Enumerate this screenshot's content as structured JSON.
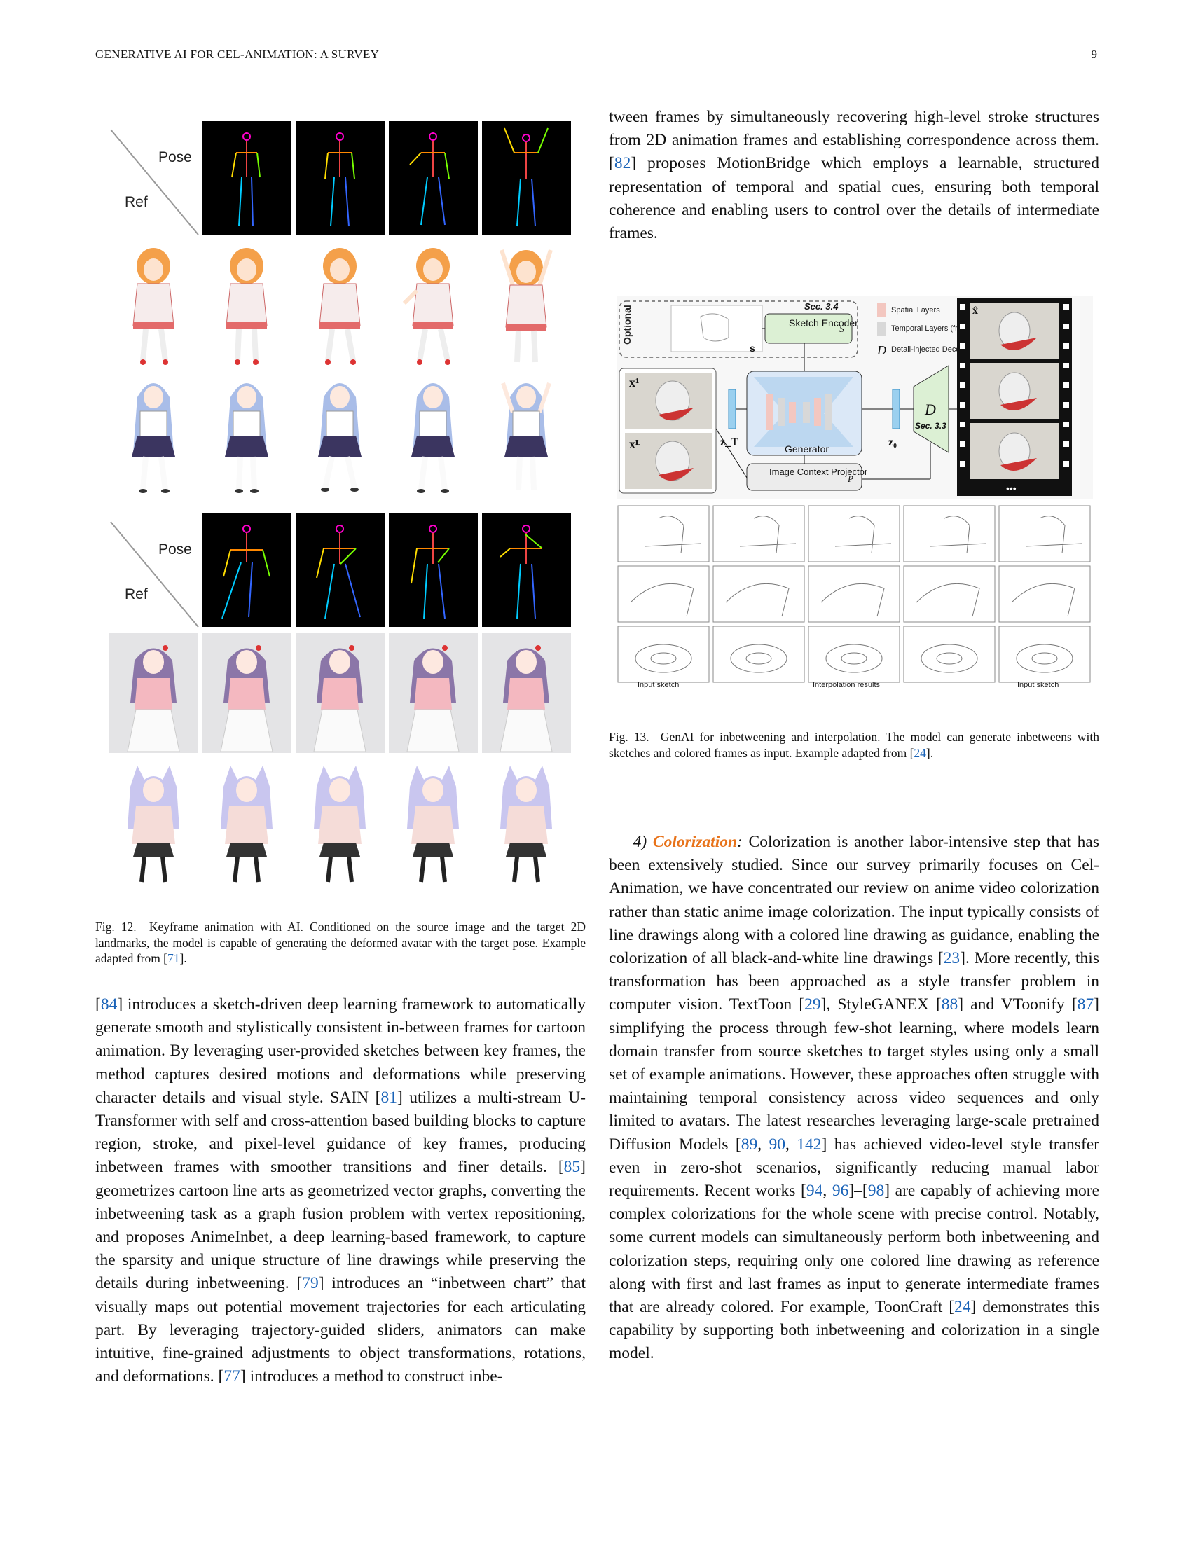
{
  "header": {
    "running_title": "GENERATIVE AI FOR CEL-ANIMATION: A SURVEY",
    "page_number": "9"
  },
  "fig12": {
    "label_pose": "Pose",
    "label_ref": "Ref",
    "caption_prefix": "Fig. 12.",
    "caption_text": "Keyframe animation with AI. Conditioned on the source image and the target 2D landmarks, the model is capable of generating the deformed avatar with the target pose. Example adapted from [",
    "caption_ref": "71",
    "caption_end": "]."
  },
  "fig13": {
    "optional": "Optional",
    "sec34": "Sec. 3.4",
    "sec33": "Sec. 3.3",
    "sketch_encoder": "Sketch Encoder",
    "sketch_encoder_sym": "S",
    "s_sym": "s",
    "x1": "x¹",
    "xL": "xᴸ",
    "zT": "z_T",
    "z0": "z₀",
    "generator": "Generator",
    "image_context": "Image Context Projector",
    "image_context_sym": "P",
    "decoder_sym": "D",
    "legend_spatial": "Spatial Layers",
    "legend_temporal": "Temporal Layers (frozen)",
    "legend_decoder": "Detail-injected Decoder",
    "xhat": "x̂",
    "dots": "•••",
    "bottom_labels": [
      "Input sketch",
      "Interpolation results",
      "Input sketch"
    ],
    "caption_prefix": "Fig. 13.",
    "caption_text": "GenAI for inbetweening and interpolation. The model can generate inbetweens with sketches and colored frames as input. Example adapted from [",
    "caption_ref": "24",
    "caption_end": "]."
  },
  "left_column": {
    "p1_ref1": "84",
    "p1_a": "] introduces a sketch-driven deep learning framework to automatically generate smooth and stylistically consistent in-between frames for cartoon animation. By leveraging user-provided sketches between key frames, the method captures desired motions and deformations while preserving character details and visual style. SAIN [",
    "p1_ref2": "81",
    "p1_b": "] utilizes a multi-stream U-Transformer with self and cross-attention based building blocks to capture region, stroke, and pixel-level guidance of key frames, producing inbetween frames with smoother transitions and finer details. [",
    "p1_ref3": "85",
    "p1_c": "] geometrizes cartoon line arts as geometrized vector graphs, converting the inbetweening task as a graph fusion problem with vertex repositioning, and proposes AnimeInbet, a deep learning-based framework, to capture the sparsity and unique structure of line drawings while preserving the details during inbetweening. [",
    "p1_ref4": "79",
    "p1_d": "] introduces an “inbetween chart” that visually maps out potential movement trajectories for each articulating part. By leveraging trajectory-guided sliders, animators can make intuitive, fine-grained adjustments to object transformations, rotations, and deformations. [",
    "p1_ref5": "77",
    "p1_e": "] introduces a method to construct inbe-"
  },
  "right_column_top": {
    "a": "tween frames by simultaneously recovering high-level stroke structures from 2D animation frames and establishing correspondence across them. [",
    "ref1": "82",
    "b": "] proposes MotionBridge which employs a learnable, structured representation of temporal and spatial cues, ensuring both temporal coherence and enabling users to control over the details of intermediate frames."
  },
  "colorization": {
    "num": "4)",
    "title": "Colorization",
    "colon": ":",
    "a": " Colorization is another labor-intensive step that has been extensively studied. Since our survey primarily focuses on Cel-Animation, we have concentrated our review on anime video colorization rather than static anime image colorization. The input typically consists of line drawings along with a colored line drawing as guidance, enabling the colorization of all black-and-white line drawings [",
    "r1": "23",
    "b": "]. More recently, this transformation has been approached as a style transfer problem in computer vision. TextToon [",
    "r2": "29",
    "c": "], StyleGANEX [",
    "r3": "88",
    "d": "] and VToonify [",
    "r4": "87",
    "e": "] simplifying the process through few-shot learning, where models learn domain transfer from source sketches to target styles using only a small set of example animations. However, these approaches often struggle with maintaining temporal consistency across video sequences and only limited to avatars. The latest researches leveraging large-scale pretrained Diffusion Models [",
    "r5": "89",
    "f": ", ",
    "r6": "90",
    "g": ", ",
    "r7": "142",
    "h": "] has achieved video-level style transfer even in zero-shot scenarios, significantly reducing manual labor requirements. Recent works [",
    "r8": "94",
    "i": ", ",
    "r9": "96",
    "j": "]–[",
    "r10": "98",
    "k": "] are capably of achieving more complex colorizations for the whole scene with precise control. Notably, some current models can simultaneously perform both inbetweening and colorization steps, requiring only one colored line drawing as reference along with first and last frames as input to generate intermediate frames that are already colored. For example, ToonCraft [",
    "r11": "24",
    "l": "] demonstrates this capability by supporting both inbetweening and colorization in a single model."
  },
  "colors": {
    "link": "#1a63b8",
    "section_title": "#e8731a"
  }
}
